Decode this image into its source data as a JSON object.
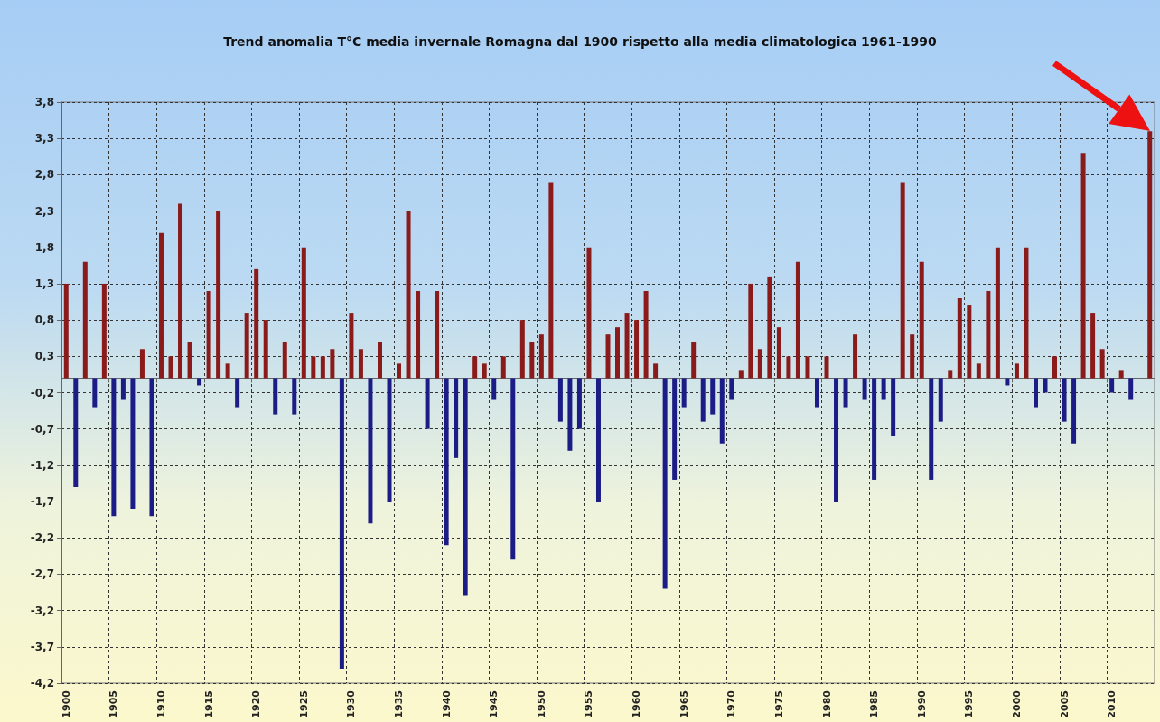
{
  "chart_data": {
    "type": "bar",
    "title": "Trend anomalia T°C media invernale Romagna dal 1900 rispetto alla media climatologica 1961-1990",
    "categories": [
      "1900",
      null,
      null,
      null,
      null,
      "1905",
      null,
      null,
      null,
      null,
      "1910",
      null,
      null,
      null,
      null,
      "1915",
      null,
      null,
      null,
      null,
      "1920",
      null,
      null,
      null,
      null,
      "1925",
      null,
      null,
      null,
      null,
      "1930",
      null,
      null,
      null,
      null,
      "1935",
      null,
      null,
      null,
      null,
      "1940",
      null,
      null,
      null,
      null,
      "1945",
      null,
      null,
      null,
      null,
      "1950",
      null,
      null,
      null,
      null,
      "1955",
      null,
      null,
      null,
      null,
      "1960",
      null,
      null,
      null,
      null,
      "1965",
      null,
      null,
      null,
      null,
      "1970",
      null,
      null,
      null,
      null,
      "1975",
      null,
      null,
      null,
      null,
      "1980",
      null,
      null,
      null,
      null,
      "1985",
      null,
      null,
      null,
      null,
      "1990",
      null,
      null,
      null,
      null,
      "1995",
      null,
      null,
      null,
      null,
      "2000",
      null,
      null,
      null,
      null,
      "2005",
      null,
      null,
      null,
      null,
      "2010",
      null,
      null,
      null,
      null
    ],
    "values": [
      1.3,
      -1.5,
      1.6,
      -0.4,
      1.3,
      -1.9,
      -0.3,
      -1.8,
      0.4,
      -1.9,
      2.0,
      0.3,
      2.4,
      0.5,
      -0.1,
      1.2,
      2.3,
      0.2,
      -0.4,
      0.9,
      1.5,
      0.8,
      -0.5,
      0.5,
      -0.5,
      1.8,
      0.3,
      0.3,
      0.4,
      -4.0,
      0.9,
      0.4,
      -2.0,
      0.5,
      -1.7,
      0.2,
      2.3,
      1.2,
      -0.7,
      1.2,
      -2.3,
      -1.1,
      -3.0,
      0.3,
      0.2,
      -0.3,
      0.3,
      -2.5,
      0.8,
      0.5,
      0.6,
      2.7,
      -0.6,
      -1.0,
      -0.7,
      1.8,
      -1.7,
      0.6,
      0.7,
      0.9,
      0.8,
      1.2,
      0.2,
      -2.9,
      -1.4,
      -0.4,
      0.5,
      -0.6,
      -0.5,
      -0.9,
      -0.3,
      0.1,
      1.3,
      0.4,
      1.4,
      0.7,
      0.3,
      1.6,
      0.3,
      -0.4,
      0.3,
      -1.7,
      -0.4,
      0.6,
      -0.3,
      -1.4,
      -0.3,
      -0.8,
      2.7,
      0.6,
      1.6,
      -1.4,
      -0.6,
      0.1,
      1.1,
      1.0,
      0.2,
      1.2,
      1.8,
      -0.1,
      0.2,
      1.8,
      -0.4,
      -0.2,
      0.3,
      -0.6,
      -0.9,
      3.1,
      0.9,
      0.4,
      -0.2,
      0.1,
      -0.3,
      null,
      3.4
    ],
    "colors": [
      "#8b1a1a",
      "#1c1c86",
      "#8b1a1a",
      "#1c1c86",
      "#8b1a1a",
      "#1c1c86",
      "#1c1c86",
      "#1c1c86",
      "#8b1a1a",
      "#1c1c86",
      "#8b1a1a",
      "#8b1a1a",
      "#8b1a1a",
      "#8b1a1a",
      "#1c1c86",
      "#8b1a1a",
      "#8b1a1a",
      "#8b1a1a",
      "#1c1c86",
      "#8b1a1a",
      "#8b1a1a",
      "#8b1a1a",
      "#1c1c86",
      "#8b1a1a",
      "#1c1c86",
      "#8b1a1a",
      "#8b1a1a",
      "#8b1a1a",
      "#8b1a1a",
      "#1c1c86",
      "#8b1a1a",
      "#8b1a1a",
      "#1c1c86",
      "#8b1a1a",
      "#1c1c86",
      "#8b1a1a",
      "#8b1a1a",
      "#8b1a1a",
      "#1c1c86",
      "#8b1a1a",
      "#1c1c86",
      "#1c1c86",
      "#1c1c86",
      "#8b1a1a",
      "#8b1a1a",
      "#1c1c86",
      "#8b1a1a",
      "#1c1c86",
      "#8b1a1a",
      "#8b1a1a",
      "#8b1a1a",
      "#8b1a1a",
      "#1c1c86",
      "#1c1c86",
      "#1c1c86",
      "#8b1a1a",
      "#1c1c86",
      "#8b1a1a",
      "#8b1a1a",
      "#8b1a1a",
      "#8b1a1a",
      "#8b1a1a",
      "#8b1a1a",
      "#1c1c86",
      "#1c1c86",
      "#1c1c86",
      "#8b1a1a",
      "#1c1c86",
      "#1c1c86",
      "#1c1c86",
      "#1c1c86",
      "#8b1a1a",
      "#8b1a1a",
      "#8b1a1a",
      "#8b1a1a",
      "#8b1a1a",
      "#8b1a1a",
      "#8b1a1a",
      "#8b1a1a",
      "#1c1c86",
      "#8b1a1a",
      "#1c1c86",
      "#1c1c86",
      "#8b1a1a",
      "#1c1c86",
      "#1c1c86",
      "#1c1c86",
      "#1c1c86",
      "#8b1a1a",
      "#8b1a1a",
      "#8b1a1a",
      "#1c1c86",
      "#1c1c86",
      "#8b1a1a",
      "#8b1a1a",
      "#8b1a1a",
      "#8b1a1a",
      "#8b1a1a",
      "#8b1a1a",
      "#1c1c86",
      "#8b1a1a",
      "#8b1a1a",
      "#1c1c86",
      "#1c1c86",
      "#8b1a1a",
      "#1c1c86",
      "#1c1c86",
      "#8b1a1a",
      "#8b1a1a",
      "#8b1a1a",
      "#1c1c86",
      "#8b1a1a",
      "#1c1c86",
      "#8b1a1a",
      "#8b1a1a"
    ],
    "ylim": [
      -4.2,
      3.8
    ],
    "yticks": [
      {
        "value": 3.8,
        "label": "3,8"
      },
      {
        "value": 3.3,
        "label": "3,3"
      },
      {
        "value": 2.8,
        "label": "2,8"
      },
      {
        "value": 2.3,
        "label": "2,3"
      },
      {
        "value": 1.8,
        "label": "1,8"
      },
      {
        "value": 1.3,
        "label": "1,3"
      },
      {
        "value": 0.8,
        "label": "0,8"
      },
      {
        "value": 0.3,
        "label": "0,3"
      },
      {
        "value": -0.2,
        "label": "-0,2"
      },
      {
        "value": -0.7,
        "label": "-0,7"
      },
      {
        "value": -1.2,
        "label": "-1,2"
      },
      {
        "value": -1.7,
        "label": "-1,7"
      },
      {
        "value": -2.2,
        "label": "-2,2"
      },
      {
        "value": -2.7,
        "label": "-2,7"
      },
      {
        "value": -3.2,
        "label": "-3,2"
      },
      {
        "value": -3.7,
        "label": "-3,7"
      },
      {
        "value": -4.2,
        "label": "-4,2"
      }
    ],
    "grid": true
  }
}
